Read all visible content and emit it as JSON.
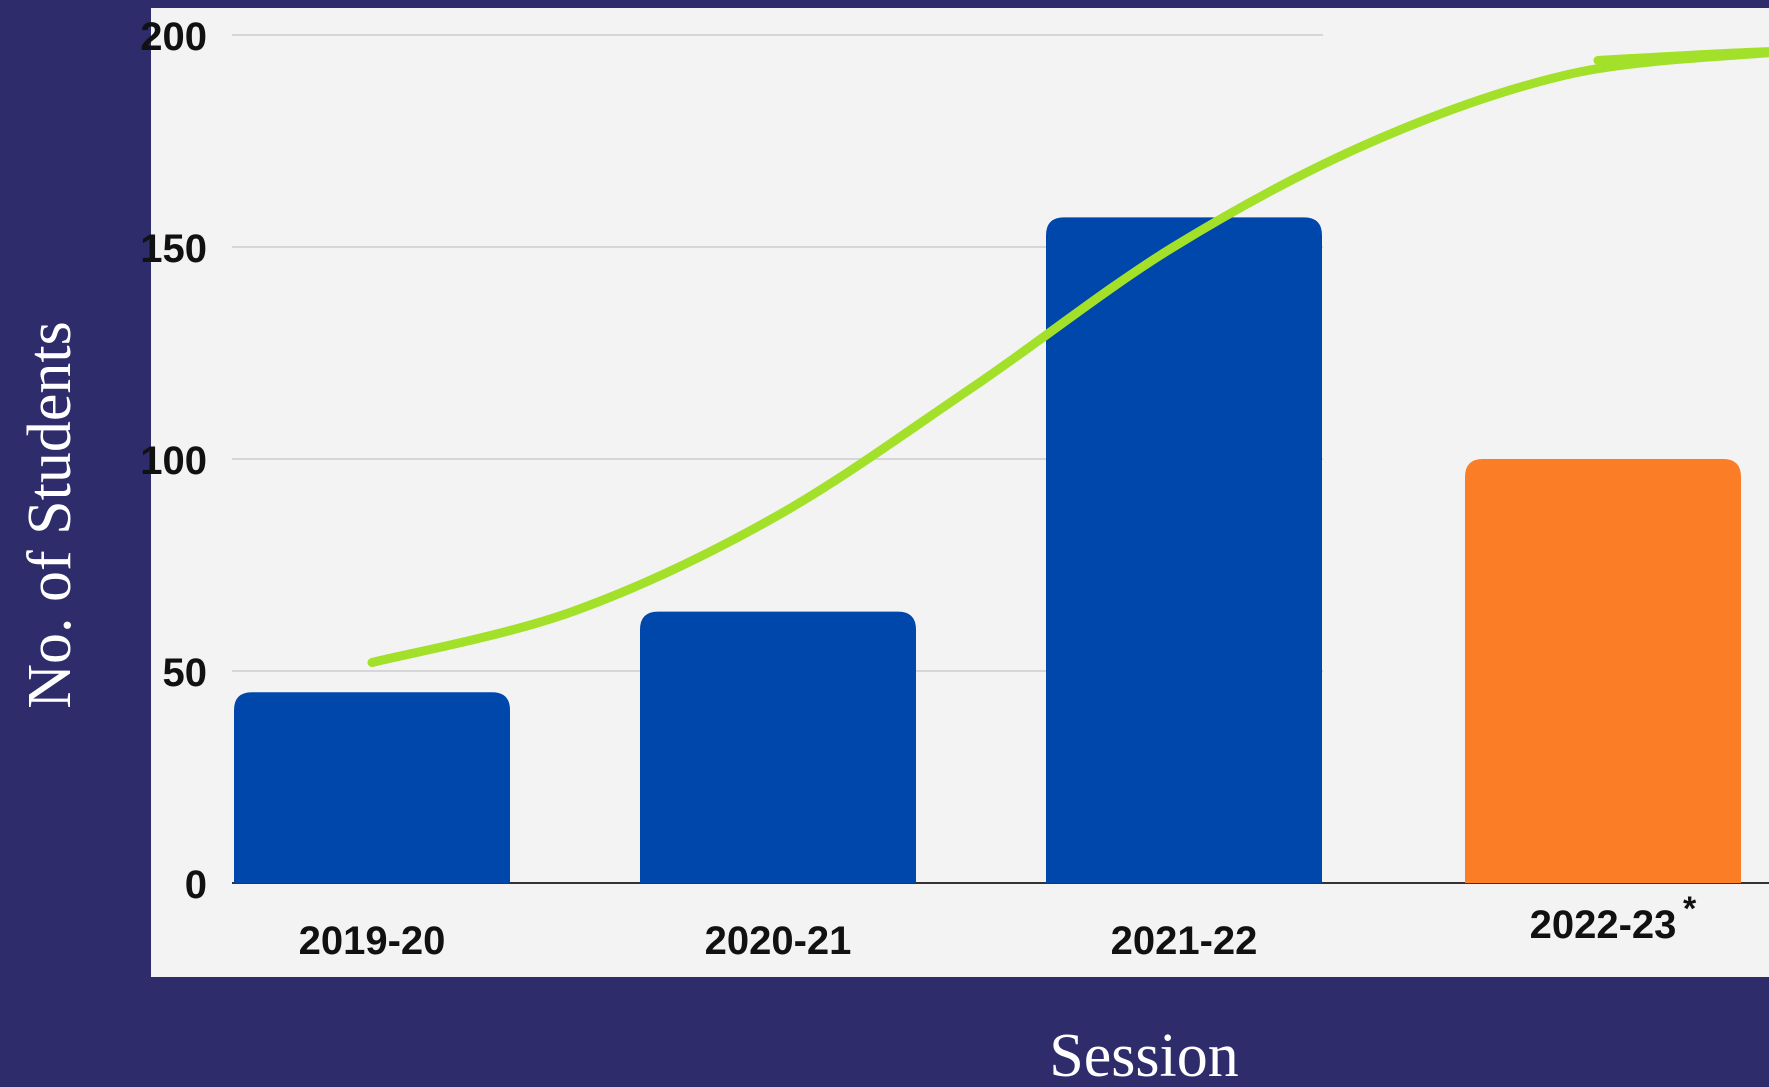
{
  "chart_data": {
    "type": "bar",
    "categories": [
      "2019-20",
      "2020-21",
      "2021-22",
      "2022-23"
    ],
    "category_suffix": [
      "",
      "",
      "",
      "*"
    ],
    "values": [
      45,
      64,
      157,
      100
    ],
    "bar_colors": [
      "#0047ab",
      "#0047ab",
      "#0047ab",
      "#fb7d26"
    ],
    "trend_points": [
      [
        0,
        52
      ],
      [
        0.5,
        64
      ],
      [
        1,
        86
      ],
      [
        1.5,
        117
      ],
      [
        2,
        150
      ],
      [
        2.5,
        175
      ],
      [
        3,
        191
      ],
      [
        3.5,
        196
      ],
      [
        4,
        194
      ]
    ],
    "trend_color": "#a3e02a",
    "xlabel": "Session",
    "ylabel": "No. of Students",
    "ylim": [
      0,
      200
    ],
    "yticks": [
      0,
      50,
      100,
      150,
      200
    ],
    "grid": true
  },
  "colors": {
    "background": "#2f2c6c",
    "plot_background": "#f3f3f3",
    "axis_text": "#ffffff"
  }
}
